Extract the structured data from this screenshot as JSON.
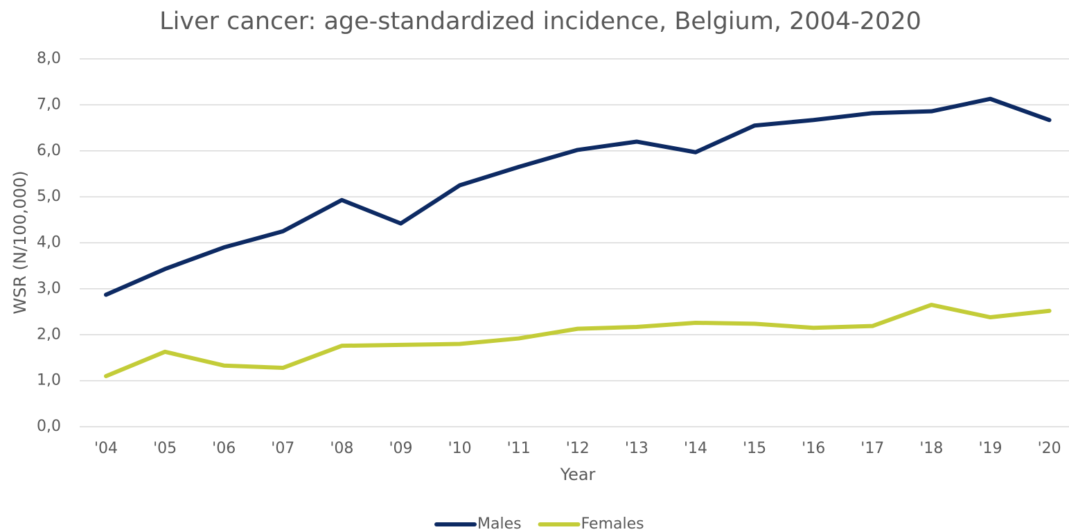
{
  "chart_data": {
    "type": "line",
    "title": "Liver cancer: age-standardized incidence, Belgium, 2004-2020",
    "x_label": "Year",
    "y_label": "WSR (N/100,000)",
    "categories": [
      "'04",
      "'05",
      "'06",
      "'07",
      "'08",
      "'09",
      "'10",
      "'11",
      "'12",
      "'13",
      "'14",
      "'15",
      "'16",
      "'17",
      "'18",
      "'19",
      "'20"
    ],
    "series": [
      {
        "name": "Males",
        "color": "#0d2a63",
        "values": [
          2.87,
          3.43,
          3.9,
          4.25,
          4.93,
          4.42,
          5.25,
          5.65,
          6.02,
          6.2,
          5.97,
          6.55,
          6.67,
          6.82,
          6.86,
          7.13,
          6.67
        ]
      },
      {
        "name": "Females",
        "color": "#c3cc38",
        "values": [
          1.1,
          1.63,
          1.33,
          1.28,
          1.76,
          1.78,
          1.8,
          1.92,
          2.13,
          2.17,
          2.26,
          2.24,
          2.15,
          2.19,
          2.65,
          2.38,
          2.52
        ]
      }
    ],
    "ylim": [
      0,
      8
    ],
    "yticks": [
      {
        "value": 0,
        "label": "0,0"
      },
      {
        "value": 1,
        "label": "1,0"
      },
      {
        "value": 2,
        "label": "2,0"
      },
      {
        "value": 3,
        "label": "3,0"
      },
      {
        "value": 4,
        "label": "4,0"
      },
      {
        "value": 5,
        "label": "5,0"
      },
      {
        "value": 6,
        "label": "6,0"
      },
      {
        "value": 7,
        "label": "7,0"
      },
      {
        "value": 8,
        "label": "8,0"
      }
    ],
    "grid": true,
    "legend": "bottom"
  }
}
